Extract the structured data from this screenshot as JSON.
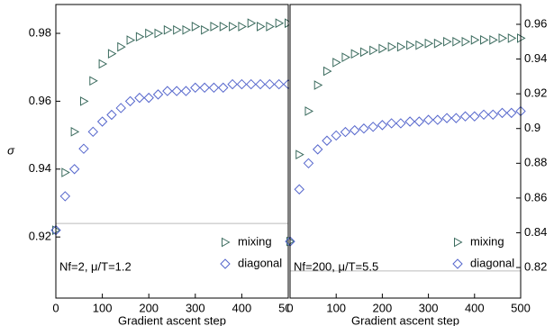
{
  "chart_data": [
    {
      "type": "scatter",
      "x_label": "Gradient ascent step",
      "y_label": "σ",
      "annotation": "Nf=2, μ/T=1.2",
      "x": [
        0,
        20,
        40,
        60,
        80,
        100,
        120,
        140,
        160,
        180,
        200,
        220,
        240,
        260,
        280,
        300,
        320,
        340,
        360,
        380,
        400,
        420,
        440,
        460,
        480,
        500
      ],
      "series": [
        {
          "name": "mixing",
          "color": "#3b6b5e",
          "marker": "triangle-right",
          "values": [
            0.922,
            0.939,
            0.951,
            0.96,
            0.966,
            0.971,
            0.974,
            0.976,
            0.978,
            0.979,
            0.98,
            0.98,
            0.981,
            0.981,
            0.981,
            0.982,
            0.981,
            0.982,
            0.982,
            0.982,
            0.982,
            0.983,
            0.982,
            0.982,
            0.983,
            0.983
          ]
        },
        {
          "name": "diagonal",
          "color": "#5566cc",
          "marker": "diamond",
          "values": [
            0.922,
            0.932,
            0.94,
            0.946,
            0.951,
            0.954,
            0.956,
            0.958,
            0.96,
            0.961,
            0.961,
            0.962,
            0.963,
            0.963,
            0.963,
            0.964,
            0.964,
            0.964,
            0.964,
            0.965,
            0.965,
            0.965,
            0.965,
            0.965,
            0.965,
            0.965
          ]
        }
      ],
      "xlim": [
        0,
        500
      ],
      "xticks": [
        0,
        100,
        200,
        300,
        400,
        500
      ],
      "ylim": [
        0.902,
        0.9885
      ],
      "yticks": [
        0.92,
        0.94,
        0.96,
        0.98
      ],
      "y_axis_side": "left",
      "hline": 0.924,
      "legend": "lower right"
    },
    {
      "type": "scatter",
      "x_label": "Gradient ascent step",
      "annotation": "Nf=200, μ/T=5.5",
      "x": [
        0,
        20,
        40,
        60,
        80,
        100,
        120,
        140,
        160,
        180,
        200,
        220,
        240,
        260,
        280,
        300,
        320,
        340,
        360,
        380,
        400,
        420,
        440,
        460,
        480,
        500
      ],
      "series": [
        {
          "name": "mixing",
          "color": "#3b6b5e",
          "marker": "triangle-right",
          "values": [
            0.835,
            0.885,
            0.91,
            0.925,
            0.933,
            0.938,
            0.941,
            0.943,
            0.944,
            0.945,
            0.946,
            0.947,
            0.947,
            0.948,
            0.948,
            0.949,
            0.949,
            0.95,
            0.95,
            0.95,
            0.951,
            0.951,
            0.951,
            0.952,
            0.952,
            0.952
          ]
        },
        {
          "name": "diagonal",
          "color": "#5566cc",
          "marker": "diamond",
          "values": [
            0.835,
            0.865,
            0.88,
            0.888,
            0.893,
            0.896,
            0.898,
            0.899,
            0.9,
            0.901,
            0.902,
            0.903,
            0.903,
            0.904,
            0.904,
            0.905,
            0.905,
            0.906,
            0.906,
            0.907,
            0.907,
            0.908,
            0.908,
            0.909,
            0.909,
            0.91
          ]
        }
      ],
      "xlim": [
        0,
        500
      ],
      "xticks": [
        0,
        100,
        200,
        300,
        400,
        500
      ],
      "ylim": [
        0.8024,
        0.9714
      ],
      "yticks": [
        0.82,
        0.84,
        0.86,
        0.88,
        0.9,
        0.92,
        0.94,
        0.96
      ],
      "y_axis_side": "right",
      "hline": 0.818,
      "legend": "lower right"
    }
  ]
}
